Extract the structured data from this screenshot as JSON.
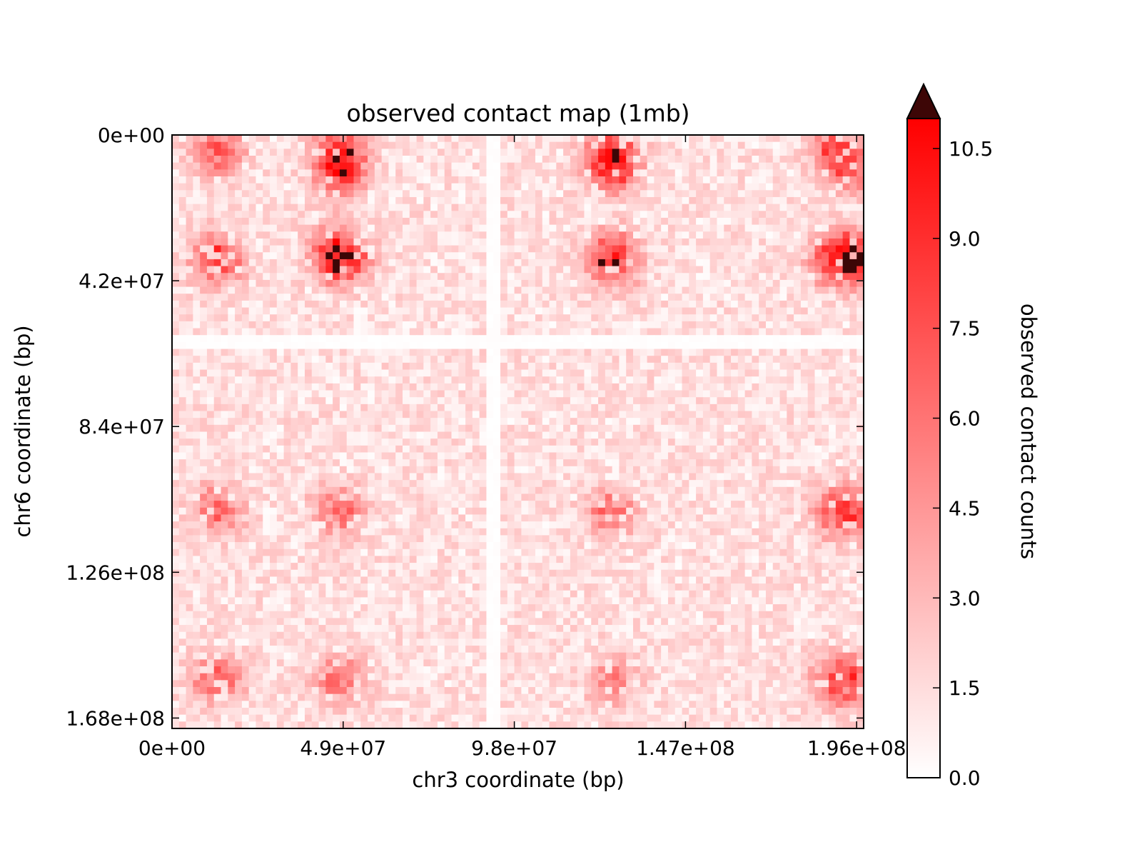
{
  "chart_data": {
    "type": "heatmap",
    "title": "observed contact map (1mb)",
    "xlabel": "chr3 coordinate (bp)",
    "ylabel": "chr6 coordinate (bp)",
    "xlim": [
      0,
      198000000
    ],
    "ylim": [
      0,
      171000000
    ],
    "y_inverted": true,
    "x_ticks": [
      {
        "value": 0,
        "label": "0e+00"
      },
      {
        "value": 49000000,
        "label": "4.9e+07"
      },
      {
        "value": 98000000,
        "label": "9.8e+07"
      },
      {
        "value": 147000000,
        "label": "1.47e+08"
      },
      {
        "value": 196000000,
        "label": "1.96e+08"
      }
    ],
    "y_ticks": [
      {
        "value": 0,
        "label": "0e+00"
      },
      {
        "value": 42000000,
        "label": "4.2e+07"
      },
      {
        "value": 84000000,
        "label": "8.4e+07"
      },
      {
        "value": 126000000,
        "label": "1.26e+08"
      },
      {
        "value": 168000000,
        "label": "1.68e+08"
      }
    ],
    "bin_size_bp": 1000000,
    "colormap": [
      "#ffffff",
      "#ff0000"
    ],
    "over_color": "#3d0606",
    "colorbar": {
      "label": "observed contact counts",
      "min": 0,
      "max": 11,
      "extend": "max",
      "ticks": [
        {
          "value": 0,
          "label": "0.0"
        },
        {
          "value": 1.5,
          "label": "1.5"
        },
        {
          "value": 3,
          "label": "3.0"
        },
        {
          "value": 4.5,
          "label": "4.5"
        },
        {
          "value": 6,
          "label": "6.0"
        },
        {
          "value": 7.5,
          "label": "7.5"
        },
        {
          "value": 9,
          "label": "9.0"
        },
        {
          "value": 10.5,
          "label": "10.5"
        }
      ]
    },
    "features": {
      "gap_rows_bp": [
        59000000,
        61000000
      ],
      "gap_cols_bp": [
        90000000,
        93000000
      ],
      "hotspots": [
        {
          "x": 48000000,
          "y": 35000000,
          "value": 12
        },
        {
          "x": 126000000,
          "y": 36000000,
          "value": 9
        },
        {
          "x": 196000000,
          "y": 36000000,
          "value": 8
        },
        {
          "x": 13000000,
          "y": 36000000,
          "value": 7
        },
        {
          "x": 190000000,
          "y": 36000000,
          "value": 7
        },
        {
          "x": 48000000,
          "y": 5000000,
          "value": 7
        },
        {
          "x": 126000000,
          "y": 5000000,
          "value": 7
        },
        {
          "x": 13000000,
          "y": 5000000,
          "value": 6
        },
        {
          "x": 48000000,
          "y": 11000000,
          "value": 6
        },
        {
          "x": 126000000,
          "y": 11000000,
          "value": 5
        },
        {
          "x": 190000000,
          "y": 5000000,
          "value": 6
        },
        {
          "x": 196000000,
          "y": 11000000,
          "value": 5
        },
        {
          "x": 13000000,
          "y": 109000000,
          "value": 5
        },
        {
          "x": 48000000,
          "y": 109000000,
          "value": 5
        },
        {
          "x": 126000000,
          "y": 109000000,
          "value": 5
        },
        {
          "x": 190000000,
          "y": 109000000,
          "value": 5
        },
        {
          "x": 196000000,
          "y": 109000000,
          "value": 5
        },
        {
          "x": 13000000,
          "y": 158000000,
          "value": 6
        },
        {
          "x": 48000000,
          "y": 158000000,
          "value": 5
        },
        {
          "x": 126000000,
          "y": 158000000,
          "value": 4
        },
        {
          "x": 190000000,
          "y": 158000000,
          "value": 5
        },
        {
          "x": 196000000,
          "y": 158000000,
          "value": 4
        }
      ]
    }
  }
}
